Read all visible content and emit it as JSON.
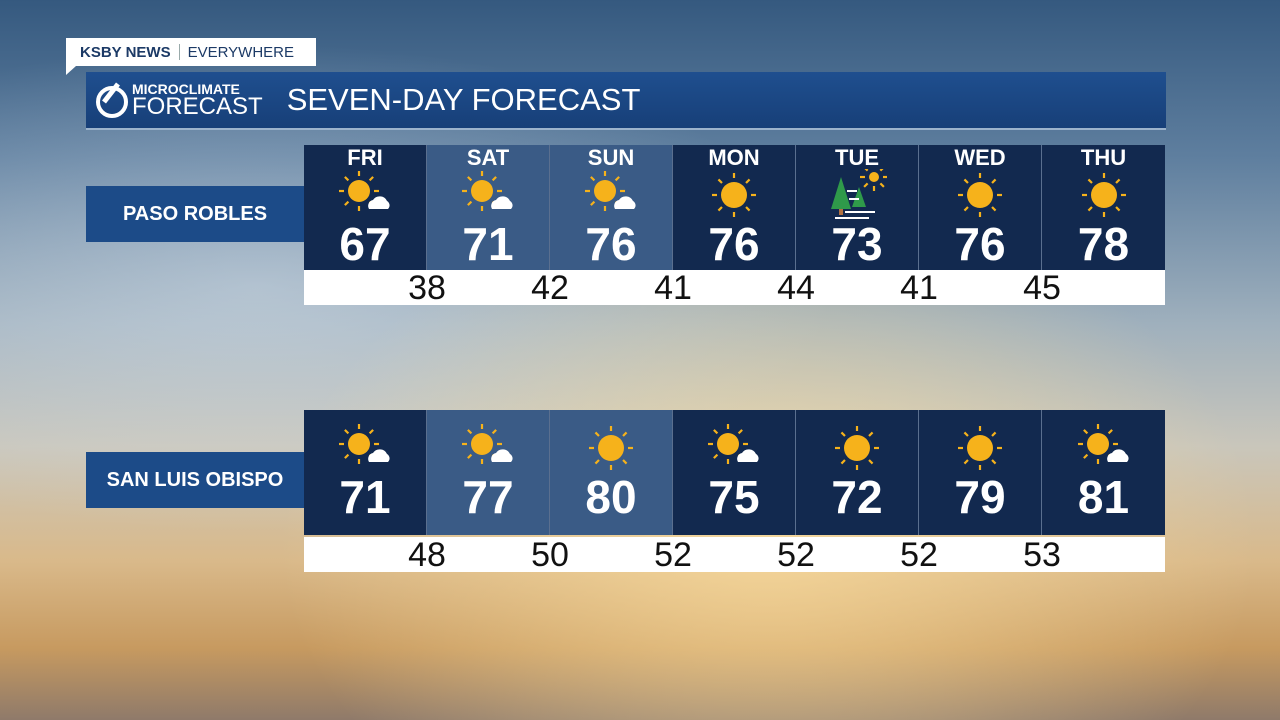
{
  "tag": {
    "brand": "KSBY NEWS",
    "slogan": "EVERYWHERE"
  },
  "header": {
    "logo_top": "MICROCLIMATE",
    "logo_bottom": "FORECAST",
    "title": "SEVEN-DAY FORECAST"
  },
  "locations": [
    {
      "name": "PASO ROBLES",
      "days": [
        {
          "day": "FRI",
          "icon": "partly-sunny",
          "high": "67"
        },
        {
          "day": "SAT",
          "icon": "partly-sunny",
          "high": "71"
        },
        {
          "day": "SUN",
          "icon": "partly-sunny",
          "high": "76"
        },
        {
          "day": "MON",
          "icon": "sunny",
          "high": "76"
        },
        {
          "day": "TUE",
          "icon": "fog-sun",
          "high": "73"
        },
        {
          "day": "WED",
          "icon": "sunny",
          "high": "76"
        },
        {
          "day": "THU",
          "icon": "sunny",
          "high": "78"
        }
      ],
      "lows": [
        "38",
        "42",
        "41",
        "44",
        "41",
        "45"
      ]
    },
    {
      "name": "SAN LUIS OBISPO",
      "days": [
        {
          "icon": "partly-sunny",
          "high": "71"
        },
        {
          "icon": "partly-sunny",
          "high": "77"
        },
        {
          "icon": "sunny",
          "high": "80"
        },
        {
          "icon": "partly-sunny",
          "high": "75"
        },
        {
          "icon": "sunny",
          "high": "72"
        },
        {
          "icon": "sunny",
          "high": "79"
        },
        {
          "icon": "partly-sunny",
          "high": "81"
        }
      ],
      "lows": [
        "48",
        "50",
        "52",
        "52",
        "52",
        "53"
      ]
    }
  ],
  "colors": {
    "dark_cell": "#12294f",
    "light_cell": "#3a5b86",
    "sun": "#f6b21b"
  }
}
